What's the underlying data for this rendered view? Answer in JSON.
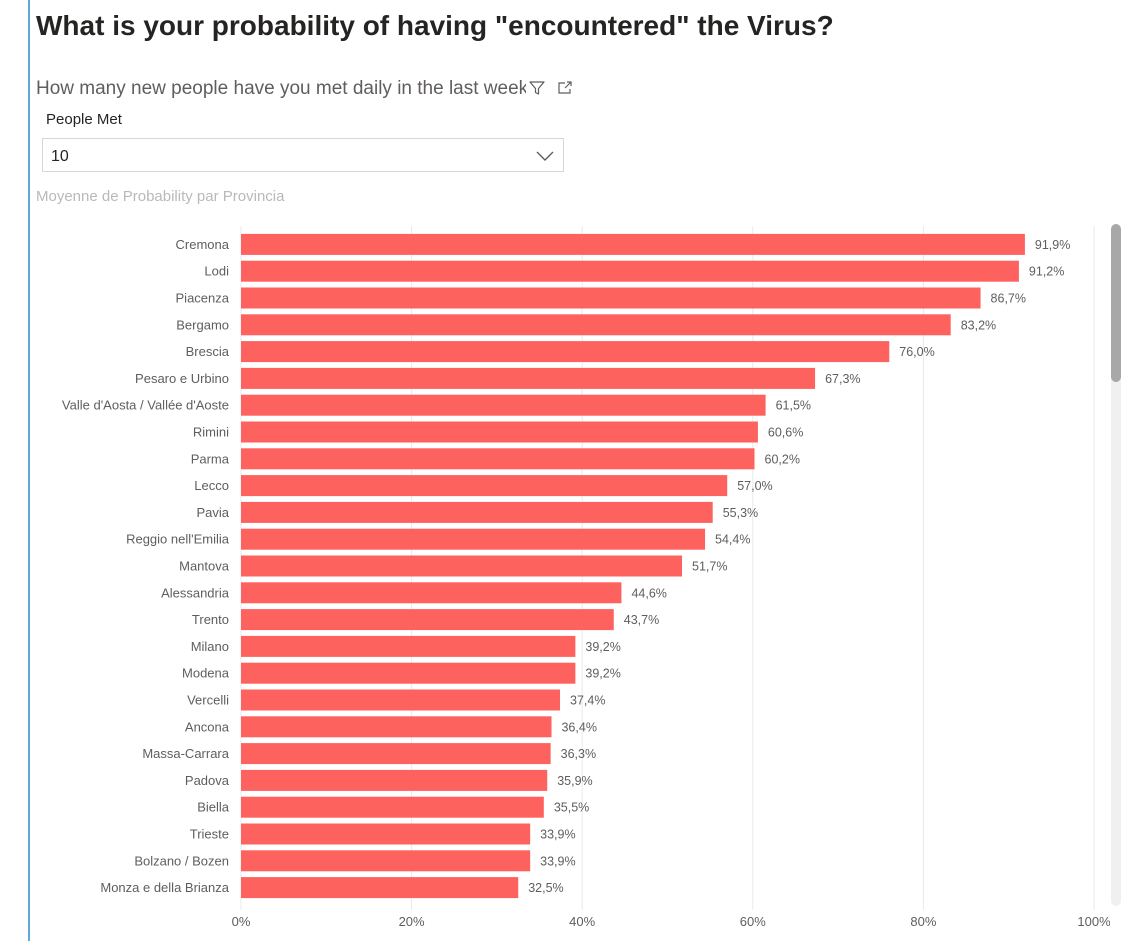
{
  "page": {
    "title": "What is your probability of having \"encountered\" the Virus?"
  },
  "slicer": {
    "question": "How many new people have you met daily in the last week?",
    "field_label": "People Met",
    "selected_value": "10",
    "filter_icon": "filter-icon",
    "focus_icon": "focus-mode-icon",
    "chevron_icon": "chevron-down-icon"
  },
  "colors": {
    "bar": "#fd625e",
    "accent_rule": "#5aa9d6"
  },
  "chart_data": {
    "type": "bar",
    "orientation": "horizontal",
    "title": "Moyenne de Probability par Provincia",
    "categories": [
      "Cremona",
      "Lodi",
      "Piacenza",
      "Bergamo",
      "Brescia",
      "Pesaro e Urbino",
      "Valle d'Aosta / Vallée d'Aoste",
      "Rimini",
      "Parma",
      "Lecco",
      "Pavia",
      "Reggio nell'Emilia",
      "Mantova",
      "Alessandria",
      "Trento",
      "Milano",
      "Modena",
      "Vercelli",
      "Ancona",
      "Massa-Carrara",
      "Padova",
      "Biella",
      "Trieste",
      "Bolzano / Bozen",
      "Monza e della Brianza"
    ],
    "values": [
      91.9,
      91.2,
      86.7,
      83.2,
      76.0,
      67.3,
      61.5,
      60.6,
      60.2,
      57.0,
      55.3,
      54.4,
      51.7,
      44.6,
      43.7,
      39.2,
      39.2,
      37.4,
      36.4,
      36.3,
      35.9,
      35.5,
      33.9,
      33.9,
      32.5
    ],
    "value_labels": [
      "91,9%",
      "91,2%",
      "86,7%",
      "83,2%",
      "76,0%",
      "67,3%",
      "61,5%",
      "60,6%",
      "60,2%",
      "57,0%",
      "55,3%",
      "54,4%",
      "51,7%",
      "44,6%",
      "43,7%",
      "39,2%",
      "39,2%",
      "37,4%",
      "36,4%",
      "36,3%",
      "35,9%",
      "35,5%",
      "33,9%",
      "33,9%",
      "32,5%"
    ],
    "xlim": [
      0,
      100
    ],
    "x_ticks": [
      0,
      20,
      40,
      60,
      80,
      100
    ],
    "x_tick_labels": [
      "0%",
      "20%",
      "40%",
      "60%",
      "80%",
      "100%"
    ],
    "grid": true,
    "xlabel": "",
    "ylabel": ""
  }
}
